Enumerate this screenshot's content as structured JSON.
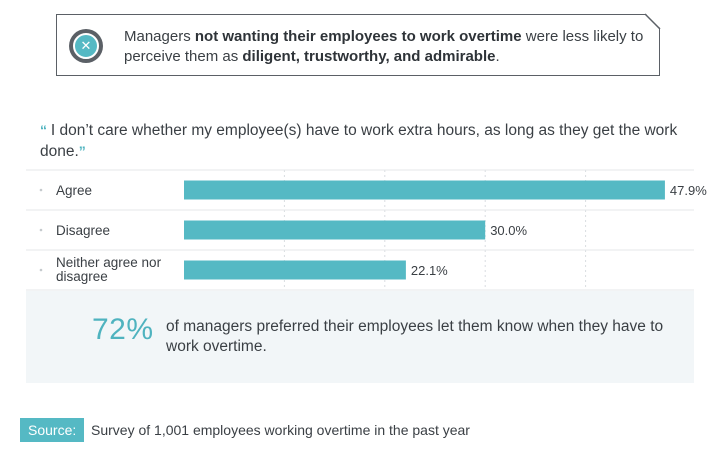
{
  "callout": {
    "icon": "x-circle-icon",
    "parts": [
      {
        "text": "Managers ",
        "bold": false
      },
      {
        "text": "not wanting their employees to work overtime",
        "bold": true
      },
      {
        "text": " were less likely to perceive them as ",
        "bold": false
      },
      {
        "text": "diligent, trustworthy, and admirable",
        "bold": true
      },
      {
        "text": ".",
        "bold": false
      }
    ]
  },
  "quote": {
    "open_mark": "“",
    "text": "I don’t care whether my employee(s) have to work extra hours, as long as they get the work done.",
    "close_mark": "”"
  },
  "chart_data": {
    "type": "bar",
    "orientation": "horizontal",
    "categories": [
      "Agree",
      "Disagree",
      "Neither agree nor disagree"
    ],
    "values": [
      47.9,
      30.0,
      22.1
    ],
    "value_labels": [
      "47.9%",
      "30.0%",
      "22.1%"
    ],
    "xlim": [
      0,
      50
    ],
    "grid": true,
    "bar_color": "#55b9c4"
  },
  "stat": {
    "value": "72%",
    "text": "of managers preferred their employees let them know when they have to work overtime."
  },
  "source": {
    "label": "Source:",
    "text": "Survey of 1,001 employees working overtime in the past year"
  },
  "colors": {
    "accent": "#55b9c4",
    "text": "#3a3f44",
    "panel": "#f2f6f8"
  }
}
